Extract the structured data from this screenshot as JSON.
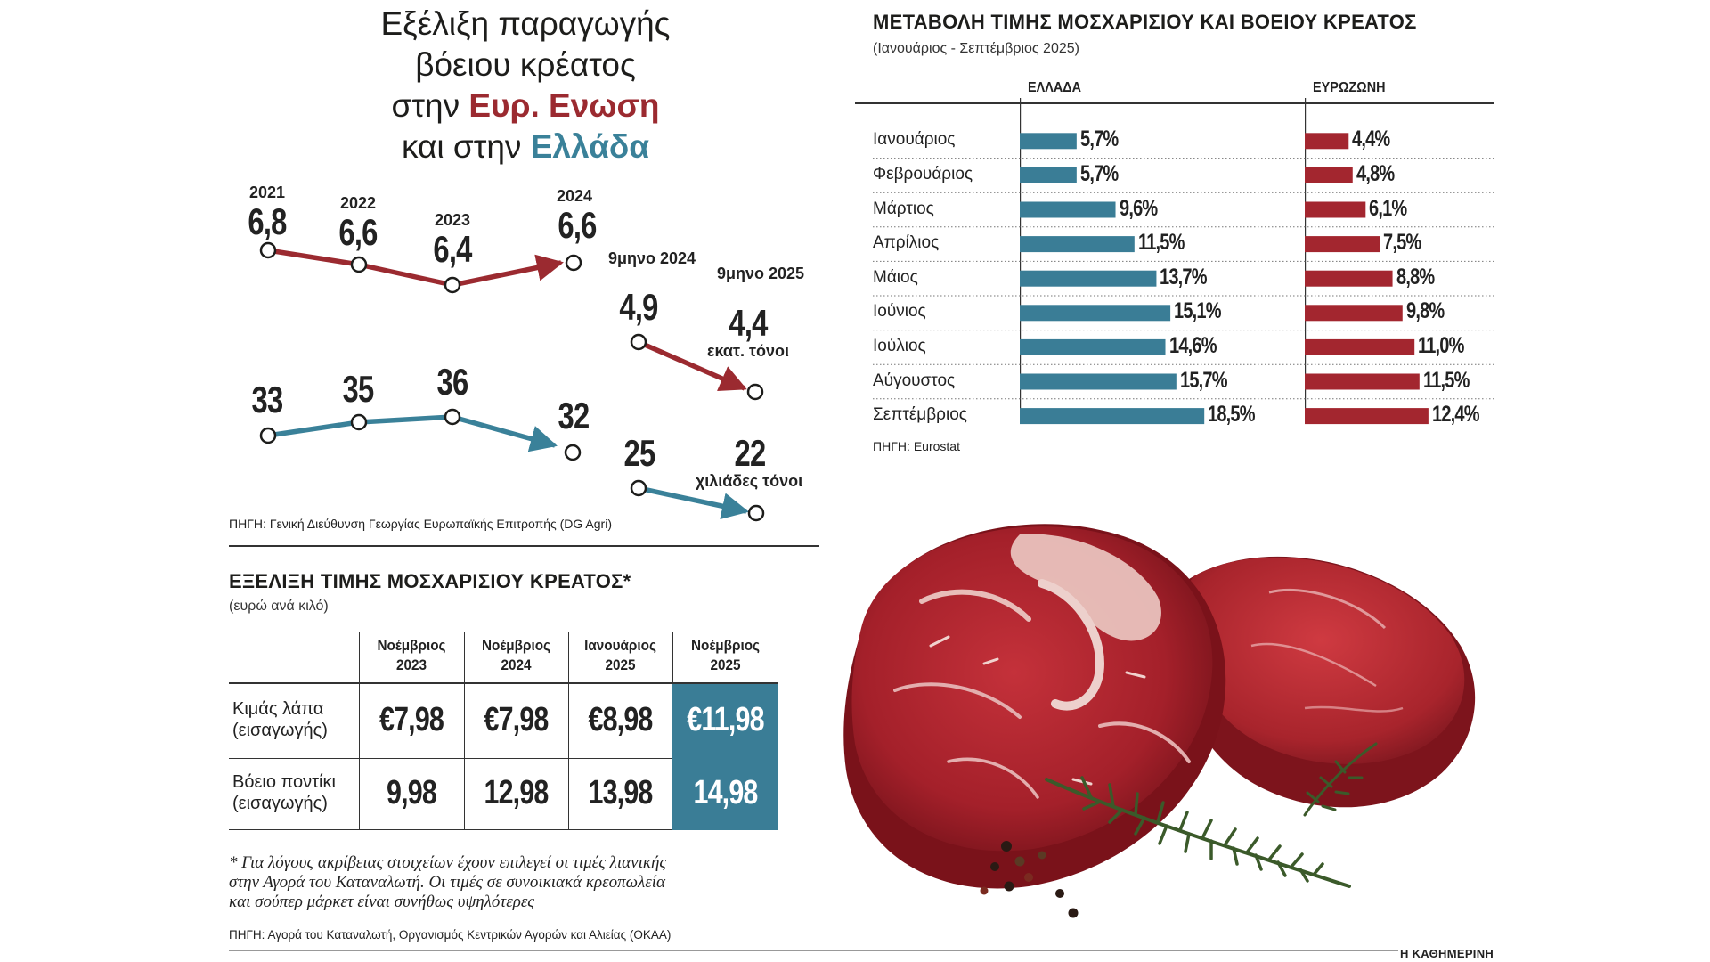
{
  "production": {
    "title_line1": "Εξέλιξη παραγωγής",
    "title_line2": "βόειου κρέατος",
    "title_line3_prefix": "στην ",
    "title_line3_highlight": "Ευρ. Ενωση",
    "title_line4_prefix": "και στην ",
    "title_line4_highlight": "Ελλάδα",
    "eu_unit": "εκατ. τόνοι",
    "gr_unit": "χιλιάδες τόνοι",
    "source": "ΠΗΓΗ: Γενική Διεύθυνση Γεωργίας Ευρωπαϊκής Επιτροπής (DG Agri)",
    "colors": {
      "eu": "#9b2a30",
      "gr": "#3a8199"
    }
  },
  "chart_data": [
    {
      "type": "line",
      "title": "",
      "series": [
        {
          "name": "Ευρ. Ενωση",
          "x": [
            "2021",
            "2022",
            "2023",
            "2024"
          ],
          "values": [
            "6,8",
            "6,6",
            "6,4",
            "6,6"
          ]
        },
        {
          "name": "Ελλάδα",
          "x": [
            "2021",
            "2022",
            "2023",
            "2024"
          ],
          "values": [
            "33",
            "35",
            "36",
            "32"
          ]
        }
      ]
    },
    {
      "type": "line",
      "title": "",
      "x": [
        "9μηνο 2024",
        "9μηνο 2025"
      ],
      "series": [
        {
          "name": "Ευρ. Ενωση",
          "values": [
            "4,9",
            "4,4"
          ],
          "unit": "εκατ. τόνοι"
        },
        {
          "name": "Ελλάδα",
          "values": [
            "25",
            "22"
          ],
          "unit": "χιλιάδες τόνοι"
        }
      ]
    },
    {
      "type": "bar",
      "title": "ΜΕΤΑΒΟΛΗ ΤΙΜΗΣ ΜΟΣΧΑΡΙΣΙΟΥ ΚΑΙ ΒΟΕΙΟΥ ΚΡΕΑΤΟΣ",
      "subtitle": "(Ιανουάριος - Σεπτέμβριος 2025)",
      "categories": [
        "Ιανουάριος",
        "Φεβρουάριος",
        "Μάρτιος",
        "Απρίλιος",
        "Μάιος",
        "Ιούνιος",
        "Ιούλιος",
        "Αύγουστος",
        "Σεπτέμβριος"
      ],
      "series": [
        {
          "name": "ΕΛΛΑΔΑ",
          "values": [
            5.7,
            5.7,
            9.6,
            11.5,
            13.7,
            15.1,
            14.6,
            15.7,
            18.5
          ],
          "labels": [
            "5,7%",
            "5,7%",
            "9,6%",
            "11,5%",
            "13,7%",
            "15,1%",
            "14,6%",
            "15,7%",
            "18,5%"
          ],
          "color": "#3a7d96"
        },
        {
          "name": "ΕΥΡΩΖΩΝΗ",
          "values": [
            4.4,
            4.8,
            6.1,
            7.5,
            8.8,
            9.8,
            11.0,
            11.5,
            12.4
          ],
          "labels": [
            "4,4%",
            "4,8%",
            "6,1%",
            "7,5%",
            "8,8%",
            "9,8%",
            "11,0%",
            "11,5%",
            "12,4%"
          ],
          "color": "#a3262f"
        }
      ],
      "source": "ΠΗΓΗ: Eurostat"
    },
    {
      "type": "table",
      "title": "ΕΞΕΛΙΞΗ ΤΙΜΗΣ ΜΟΣΧΑΡΙΣΙΟΥ ΚΡΕΑΤΟΣ*",
      "subtitle": "(ευρώ ανά κιλό)",
      "columns": [
        {
          "line1": "Νοέμβριος",
          "line2": "2023"
        },
        {
          "line1": "Νοέμβριος",
          "line2": "2024"
        },
        {
          "line1": "Ιανουάριος",
          "line2": "2025"
        },
        {
          "line1": "Νοέμβριος",
          "line2": "2025"
        }
      ],
      "rows": [
        {
          "line1": "Κιμάς λάπα",
          "line2": "(εισαγωγής)",
          "cells": [
            "€7,98",
            "€7,98",
            "€8,98",
            "€11,98"
          ]
        },
        {
          "line1": "Βόειο ποντίκι",
          "line2": "(εισαγωγής)",
          "cells": [
            "9,98",
            "12,98",
            "13,98",
            "14,98"
          ]
        }
      ],
      "highlight_color": "#3a7d96"
    }
  ],
  "footnote": {
    "line1": "* Για λόγους ακρίβειας στοιχείων έχουν επιλεγεί οι τιμές λιανικής",
    "line2": "στην Αγορά του Καταναλωτή. Οι τιμές σε συνοικιακά κρεοπωλεία",
    "line3": "και σούπερ μάρκετ είναι συνήθως υψηλότερες",
    "source": "ΠΗΓΗ: Αγορά του Καταναλωτή, Οργανισμός Κεντρικών Αγορών και Αλιείας (ΟΚΑΑ)"
  },
  "brand": "Η ΚΑΘΗΜΕΡΙΝΗ"
}
